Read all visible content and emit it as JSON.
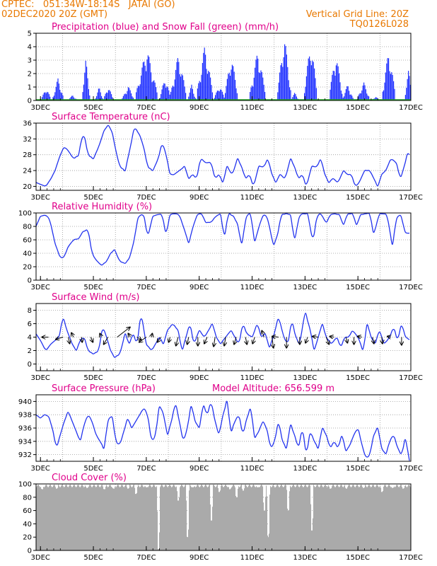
{
  "header": {
    "line1_left": "CPTEC:   051:34W-18:14S   JATAI (GO)",
    "line2_left": "02DEC2020 20Z (GMT)",
    "line2_right": "Vertical Grid Line: 20Z",
    "line3_right": "TQ0126L028"
  },
  "colors": {
    "precip": "#2233ff",
    "snow": "#22aa22",
    "line": "#2233ee",
    "cloud": "#aaaaaa",
    "title": "#e0008a",
    "header": "#e87800"
  },
  "x_axis": {
    "day_labels": [
      "3DEC",
      "5DEC",
      "7DEC",
      "9DEC",
      "11DEC",
      "13DEC",
      "15DEC",
      "17DEC"
    ],
    "start_day": 2.8333,
    "end_day": 17.0
  },
  "chart_data": [
    {
      "type": "bar",
      "title": "Precipitation (blue) and Snow Fall (green) (mm/h)",
      "ylim": [
        0,
        5
      ],
      "yticks": [
        0,
        1,
        2,
        3,
        4,
        5
      ],
      "series": [
        {
          "name": "Precipitation",
          "bursts": [
            {
              "day": 3.2,
              "width": 0.35,
              "peak": 1.0
            },
            {
              "day": 3.65,
              "width": 0.4,
              "peak": 1.7
            },
            {
              "day": 4.2,
              "width": 0.35,
              "peak": 0.4
            },
            {
              "day": 4.7,
              "width": 0.3,
              "peak": 3.1
            },
            {
              "day": 5.2,
              "width": 0.3,
              "peak": 1.0
            },
            {
              "day": 5.55,
              "width": 0.35,
              "peak": 1.1
            },
            {
              "day": 6.3,
              "width": 0.45,
              "peak": 1.1
            },
            {
              "day": 7.0,
              "width": 0.8,
              "peak": 4.0
            },
            {
              "day": 7.7,
              "width": 0.4,
              "peak": 1.8
            },
            {
              "day": 8.2,
              "width": 0.6,
              "peak": 3.5
            },
            {
              "day": 8.7,
              "width": 0.3,
              "peak": 1.2
            },
            {
              "day": 9.2,
              "width": 0.6,
              "peak": 4.2
            },
            {
              "day": 9.75,
              "width": 0.4,
              "peak": 1.2
            },
            {
              "day": 10.2,
              "width": 0.5,
              "peak": 3.4
            },
            {
              "day": 11.2,
              "width": 0.6,
              "peak": 3.8
            },
            {
              "day": 12.2,
              "width": 0.5,
              "peak": 5.0
            },
            {
              "day": 12.6,
              "width": 0.3,
              "peak": 0.6
            },
            {
              "day": 13.2,
              "width": 0.5,
              "peak": 4.5
            },
            {
              "day": 14.15,
              "width": 0.5,
              "peak": 3.6
            },
            {
              "day": 14.6,
              "width": 0.4,
              "peak": 1.2
            },
            {
              "day": 15.2,
              "width": 0.45,
              "peak": 1.4
            },
            {
              "day": 15.65,
              "width": 0.3,
              "peak": 0.3
            },
            {
              "day": 16.15,
              "width": 0.5,
              "peak": 3.8
            },
            {
              "day": 16.9,
              "width": 0.3,
              "peak": 2.3
            }
          ]
        },
        {
          "name": "Snow Fall",
          "values_constant": 0.05
        }
      ]
    },
    {
      "type": "line",
      "title": "Surface Temperature (nC)",
      "ylim": [
        19,
        36
      ],
      "yticks": [
        20,
        24,
        28,
        32,
        36
      ],
      "x_days": [
        2.83,
        3.0,
        3.2,
        3.4,
        3.55,
        3.75,
        3.9,
        4.05,
        4.25,
        4.45,
        4.55,
        4.65,
        4.8,
        5.0,
        5.2,
        5.4,
        5.55,
        5.7,
        5.85,
        6.0,
        6.2,
        6.4,
        6.55,
        6.75,
        6.9,
        7.05,
        7.25,
        7.45,
        7.6,
        7.75,
        7.9,
        8.05,
        8.25,
        8.45,
        8.6,
        8.75,
        8.9,
        9.05,
        9.25,
        9.45,
        9.6,
        9.75,
        9.9,
        10.05,
        10.25,
        10.45,
        10.6,
        10.75,
        10.9,
        11.05,
        11.25,
        11.45,
        11.6,
        11.75,
        11.9,
        12.05,
        12.25,
        12.45,
        12.6,
        12.75,
        12.9,
        13.05,
        13.25,
        13.45,
        13.6,
        13.75,
        13.9,
        14.05,
        14.25,
        14.45,
        14.6,
        14.75,
        14.9,
        15.05,
        15.25,
        15.45,
        15.6,
        15.75,
        15.9,
        16.05,
        16.25,
        16.45,
        16.6,
        16.75,
        16.9,
        17.0
      ],
      "values": [
        21,
        20.5,
        20,
        22,
        24,
        28,
        30,
        29,
        27,
        28,
        32,
        33,
        28,
        27,
        30,
        34,
        35.5,
        34,
        29,
        25,
        24,
        30,
        35,
        33,
        30,
        25,
        24,
        27,
        31,
        28,
        23,
        23,
        24,
        25,
        22,
        23,
        22,
        27,
        26,
        26,
        22,
        23,
        21,
        25,
        23,
        27,
        25,
        22,
        23,
        20,
        25,
        25,
        27,
        23,
        21,
        23,
        22,
        27,
        25,
        22,
        23,
        20,
        25,
        25,
        27,
        23,
        21,
        22,
        21,
        24,
        23,
        23,
        20,
        21,
        24,
        24,
        22,
        20,
        23,
        24,
        27,
        26,
        22,
        25,
        29,
        27
      ]
    },
    {
      "type": "line",
      "title": "Relative Humidity (%)",
      "ylim": [
        0,
        100
      ],
      "yticks": [
        0,
        20,
        40,
        60,
        80,
        100
      ],
      "x_days": [
        2.83,
        3.0,
        3.2,
        3.35,
        3.55,
        3.75,
        3.9,
        4.05,
        4.25,
        4.45,
        4.6,
        4.8,
        4.95,
        5.1,
        5.3,
        5.5,
        5.65,
        5.8,
        6.0,
        6.2,
        6.35,
        6.5,
        6.7,
        6.9,
        7.05,
        7.25,
        7.45,
        7.6,
        7.75,
        7.9,
        8.1,
        8.25,
        8.45,
        8.6,
        8.8,
        8.95,
        9.1,
        9.25,
        9.45,
        9.6,
        9.8,
        9.95,
        10.1,
        10.3,
        10.45,
        10.6,
        10.8,
        10.95,
        11.1,
        11.3,
        11.45,
        11.6,
        11.8,
        11.95,
        12.1,
        12.3,
        12.45,
        12.6,
        12.8,
        12.95,
        13.1,
        13.3,
        13.45,
        13.6,
        13.8,
        13.95,
        14.1,
        14.3,
        14.45,
        14.6,
        14.8,
        14.95,
        15.1,
        15.3,
        15.45,
        15.6,
        15.8,
        15.95,
        16.1,
        16.3,
        16.45,
        16.6,
        16.8,
        17.0
      ],
      "values": [
        80,
        95,
        97,
        90,
        55,
        33,
        35,
        50,
        60,
        62,
        72,
        75,
        40,
        30,
        22,
        28,
        40,
        45,
        28,
        25,
        32,
        52,
        95,
        98,
        65,
        95,
        98,
        97,
        68,
        98,
        99,
        97,
        74,
        55,
        84,
        99,
        98,
        86,
        86,
        94,
        99,
        64,
        99,
        95,
        83,
        53,
        98,
        97,
        57,
        85,
        99,
        90,
        52,
        65,
        97,
        99,
        97,
        60,
        97,
        99,
        98,
        58,
        95,
        99,
        85,
        97,
        99,
        97,
        82,
        98,
        99,
        82,
        97,
        99,
        99,
        68,
        98,
        99,
        97,
        52,
        90,
        99,
        70,
        70
      ]
    },
    {
      "type": "line",
      "title": "Surface Wind (m/s)",
      "ylim": [
        -1,
        9
      ],
      "yticks": [
        0,
        2,
        4,
        6,
        8
      ],
      "x_days": [
        2.83,
        3.0,
        3.2,
        3.4,
        3.55,
        3.7,
        3.85,
        4.0,
        4.2,
        4.35,
        4.5,
        4.65,
        4.8,
        5.0,
        5.2,
        5.35,
        5.5,
        5.65,
        5.8,
        6.0,
        6.2,
        6.35,
        6.5,
        6.65,
        6.8,
        7.0,
        7.2,
        7.35,
        7.5,
        7.65,
        7.8,
        8.0,
        8.2,
        8.35,
        8.5,
        8.65,
        8.8,
        9.0,
        9.2,
        9.35,
        9.5,
        9.65,
        9.8,
        10.0,
        10.2,
        10.35,
        10.5,
        10.65,
        10.8,
        11.0,
        11.2,
        11.35,
        11.5,
        11.65,
        11.8,
        12.0,
        12.2,
        12.35,
        12.5,
        12.65,
        12.8,
        13.0,
        13.2,
        13.35,
        13.5,
        13.65,
        13.8,
        14.0,
        14.2,
        14.35,
        14.5,
        14.65,
        14.8,
        15.0,
        15.2,
        15.35,
        15.5,
        15.65,
        15.8,
        16.0,
        16.2,
        16.35,
        16.5,
        16.65,
        16.8,
        17.0
      ],
      "values": [
        4.5,
        3.5,
        2,
        3,
        3.5,
        4,
        7,
        5,
        3,
        2,
        3.5,
        4,
        2,
        1.5,
        2,
        5.5,
        4,
        2,
        1,
        1.5,
        4.5,
        3,
        4.5,
        3,
        7.5,
        3,
        2,
        3,
        4,
        3,
        5,
        6,
        5,
        2,
        4,
        6,
        3,
        5,
        4,
        5,
        6,
        4,
        3,
        4,
        5,
        4,
        3,
        6,
        4.5,
        4,
        6,
        4,
        4.5,
        2.5,
        4,
        7,
        4,
        3,
        6.5,
        4,
        3,
        7.8,
        5,
        2,
        4,
        6,
        4,
        3,
        4,
        2.5,
        4,
        4,
        5,
        4,
        2,
        6,
        4,
        3,
        5,
        3,
        4,
        5.5,
        3.5,
        6,
        4,
        3.5
      ],
      "arrows": [
        {
          "day": 3.3,
          "dx": -9,
          "dy": 0
        },
        {
          "day": 3.85,
          "dx": -10,
          "dy": 3
        },
        {
          "day": 4.05,
          "dx": 2,
          "dy": 9
        },
        {
          "day": 4.25,
          "dx": -3,
          "dy": -6
        },
        {
          "day": 4.55,
          "dx": 1,
          "dy": 7
        },
        {
          "day": 4.9,
          "dx": 3,
          "dy": 7
        },
        {
          "day": 5.3,
          "dx": -2,
          "dy": -5
        },
        {
          "day": 5.55,
          "dx": -6,
          "dy": 10
        },
        {
          "day": 5.9,
          "dx": 18,
          "dy": -14
        },
        {
          "day": 6.4,
          "dx": -3,
          "dy": -5
        },
        {
          "day": 6.65,
          "dx": 6,
          "dy": 4
        },
        {
          "day": 7.0,
          "dx": -10,
          "dy": 7
        },
        {
          "day": 7.2,
          "dx": 1,
          "dy": -5
        },
        {
          "day": 7.55,
          "dx": -5,
          "dy": 7
        },
        {
          "day": 7.9,
          "dx": -2,
          "dy": 7
        },
        {
          "day": 8.2,
          "dx": -3,
          "dy": 12
        },
        {
          "day": 8.6,
          "dx": -2,
          "dy": 10
        },
        {
          "day": 8.95,
          "dx": 0,
          "dy": 12
        },
        {
          "day": 9.3,
          "dx": -4,
          "dy": 9
        },
        {
          "day": 9.6,
          "dx": -2,
          "dy": 13
        },
        {
          "day": 10.0,
          "dx": -2,
          "dy": 12
        },
        {
          "day": 10.4,
          "dx": -3,
          "dy": 10
        },
        {
          "day": 10.75,
          "dx": 2,
          "dy": 10
        },
        {
          "day": 11.1,
          "dx": -3,
          "dy": 9
        },
        {
          "day": 11.45,
          "dx": -3,
          "dy": -9
        },
        {
          "day": 11.75,
          "dx": 2,
          "dy": 15
        },
        {
          "day": 12.0,
          "dx": -9,
          "dy": -1
        },
        {
          "day": 12.3,
          "dx": 0,
          "dy": 15
        },
        {
          "day": 12.8,
          "dx": 0,
          "dy": 10
        },
        {
          "day": 13.1,
          "dx": -3,
          "dy": 8
        },
        {
          "day": 13.5,
          "dx": -8,
          "dy": -1
        },
        {
          "day": 13.8,
          "dx": 4,
          "dy": 10
        },
        {
          "day": 14.1,
          "dx": -6,
          "dy": -1
        },
        {
          "day": 14.55,
          "dx": 2,
          "dy": 8
        },
        {
          "day": 14.85,
          "dx": 0,
          "dy": 10
        },
        {
          "day": 15.15,
          "dx": -6,
          "dy": -1
        },
        {
          "day": 15.55,
          "dx": 2,
          "dy": 9
        },
        {
          "day": 15.9,
          "dx": 1,
          "dy": 9
        },
        {
          "day": 16.25,
          "dx": -5,
          "dy": -1
        },
        {
          "day": 16.65,
          "dx": 0,
          "dy": 11
        }
      ]
    },
    {
      "type": "line",
      "title": "Surface Pressure (hPa)",
      "annotation": "Model Altitude: 656.599  m",
      "ylim": [
        931,
        941
      ],
      "yticks": [
        932,
        934,
        936,
        938,
        940
      ],
      "x_days": [
        2.83,
        3.0,
        3.15,
        3.3,
        3.45,
        3.6,
        3.75,
        3.9,
        4.05,
        4.2,
        4.35,
        4.5,
        4.65,
        4.8,
        4.95,
        5.1,
        5.25,
        5.4,
        5.55,
        5.7,
        5.85,
        6.0,
        6.15,
        6.3,
        6.45,
        6.6,
        6.75,
        6.9,
        7.05,
        7.2,
        7.35,
        7.5,
        7.65,
        7.8,
        7.95,
        8.1,
        8.25,
        8.4,
        8.55,
        8.7,
        8.85,
        9.0,
        9.15,
        9.3,
        9.45,
        9.6,
        9.75,
        9.9,
        10.05,
        10.2,
        10.35,
        10.5,
        10.65,
        10.8,
        10.95,
        11.1,
        11.25,
        11.4,
        11.55,
        11.7,
        11.85,
        12.0,
        12.15,
        12.3,
        12.45,
        12.6,
        12.75,
        12.9,
        13.05,
        13.2,
        13.35,
        13.5,
        13.65,
        13.8,
        13.95,
        14.1,
        14.25,
        14.4,
        14.55,
        14.7,
        14.85,
        15.0,
        15.15,
        15.3,
        15.45,
        15.6,
        15.75,
        15.9,
        16.05,
        16.2,
        16.35,
        16.5,
        16.65,
        16.8,
        16.95,
        17.0
      ],
      "values": [
        938,
        937.5,
        938,
        937.8,
        936,
        933,
        935,
        937,
        938.5,
        937,
        935.5,
        934,
        936.5,
        938,
        937,
        935,
        934,
        933,
        937,
        938,
        934,
        933.5,
        935.5,
        937.5,
        936,
        937,
        938,
        939,
        938,
        934,
        935,
        939.5,
        938,
        935,
        937,
        939.8,
        937,
        934,
        936,
        939.5,
        937,
        936,
        939.5,
        938,
        940,
        937,
        935,
        938,
        940,
        935.5,
        937,
        938,
        935,
        937.5,
        939,
        934.5,
        935.5,
        937,
        936,
        933,
        934,
        937,
        934,
        933,
        936.5,
        935,
        933,
        936,
        932,
        935.5,
        934,
        933,
        936,
        935,
        933,
        934,
        933,
        935,
        932.5,
        933.5,
        935,
        936,
        933.5,
        931.5,
        932,
        935,
        936,
        933,
        932,
        934,
        935,
        933,
        932,
        934.5,
        931,
        933
      ]
    },
    {
      "type": "area",
      "title": "Cloud Cover (%)",
      "ylim": [
        0,
        100
      ],
      "yticks": [
        0,
        20,
        40,
        60,
        80,
        100
      ],
      "base_value": 97,
      "dips": [
        {
          "day": 3.05,
          "value": 92
        },
        {
          "day": 3.6,
          "value": 93
        },
        {
          "day": 4.75,
          "value": 94
        },
        {
          "day": 5.4,
          "value": 92
        },
        {
          "day": 5.75,
          "value": 93
        },
        {
          "day": 6.3,
          "value": 93
        },
        {
          "day": 6.6,
          "value": 85
        },
        {
          "day": 7.0,
          "value": 95
        },
        {
          "day": 7.45,
          "value": 2
        },
        {
          "day": 8.2,
          "value": 75
        },
        {
          "day": 8.55,
          "value": 20
        },
        {
          "day": 8.75,
          "value": 95
        },
        {
          "day": 9.45,
          "value": 45
        },
        {
          "day": 9.75,
          "value": 88
        },
        {
          "day": 10.15,
          "value": 92
        },
        {
          "day": 10.4,
          "value": 80
        },
        {
          "day": 10.65,
          "value": 90
        },
        {
          "day": 11.2,
          "value": 95
        },
        {
          "day": 11.45,
          "value": 60
        },
        {
          "day": 11.6,
          "value": 20
        },
        {
          "day": 11.85,
          "value": 95
        },
        {
          "day": 12.35,
          "value": 60
        },
        {
          "day": 13.25,
          "value": 30
        },
        {
          "day": 13.95,
          "value": 93
        },
        {
          "day": 14.55,
          "value": 93
        },
        {
          "day": 15.2,
          "value": 94
        },
        {
          "day": 15.9,
          "value": 88
        },
        {
          "day": 16.3,
          "value": 94
        },
        {
          "day": 16.7,
          "value": 93
        }
      ]
    }
  ]
}
